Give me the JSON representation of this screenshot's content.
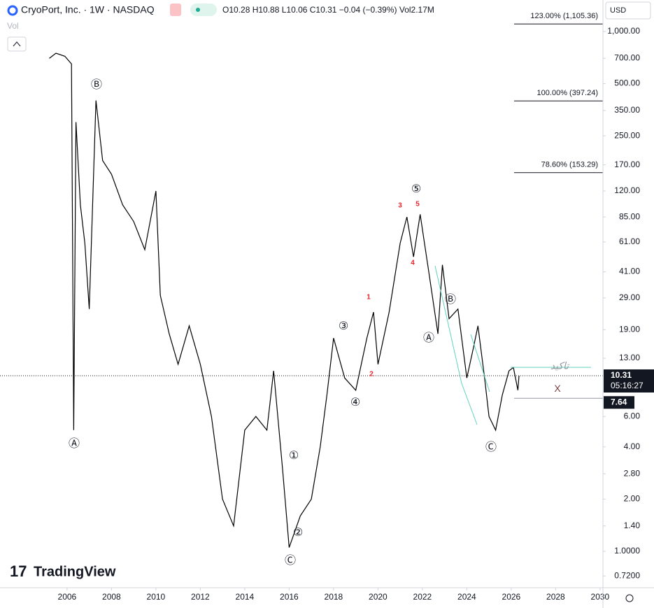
{
  "chart_data": {
    "type": "line",
    "title": "CryoPort, Inc. · 1W · NASDAQ",
    "ohlc": "O10.28 H10.88 L10.06 C10.31 −0.04 (−0.39%) Vol2.17M",
    "volume_label": "Vol",
    "currency": "USD",
    "brand": "TradingView",
    "log_scale": true,
    "color": "#000000",
    "x": [
      2005.2,
      2005.5,
      2005.9,
      2006.2,
      2006.3,
      2006.4,
      2006.6,
      2006.8,
      2007.0,
      2007.3,
      2007.6,
      2008.0,
      2008.5,
      2009.0,
      2009.5,
      2010.0,
      2010.2,
      2010.6,
      2011.0,
      2011.5,
      2012.0,
      2012.5,
      2013.0,
      2013.5,
      2014.0,
      2014.5,
      2015.0,
      2015.3,
      2015.7,
      2016.0,
      2016.5,
      2017.0,
      2017.4,
      2017.7,
      2018.0,
      2018.5,
      2019.0,
      2019.5,
      2019.8,
      2020.0,
      2020.5,
      2021.0,
      2021.3,
      2021.6,
      2021.9,
      2022.3,
      2022.7,
      2022.9,
      2023.2,
      2023.6,
      2024.0,
      2024.3,
      2024.5,
      2024.8,
      2025.0,
      2025.3,
      2025.6,
      2025.9,
      2026.1,
      2026.3,
      2026.35
    ],
    "values": [
      700,
      750,
      720,
      650,
      5,
      300,
      100,
      60,
      25,
      400,
      180,
      150,
      100,
      80,
      55,
      120,
      30,
      18,
      12,
      20,
      12,
      6,
      2,
      1.4,
      5,
      6,
      5,
      11,
      3,
      1.05,
      1.6,
      2,
      4,
      8,
      17,
      10,
      8.5,
      17,
      24,
      12,
      24,
      60,
      85,
      50,
      88,
      40,
      18,
      45,
      22,
      25,
      10,
      15,
      20,
      10,
      6,
      5,
      8,
      11,
      11.5,
      8.5,
      10.31
    ],
    "xlim": [
      2002.98,
      2030.13
    ],
    "xticks": [
      2006,
      2008,
      2010,
      2012,
      2014,
      2016,
      2018,
      2020,
      2022,
      2024,
      2026,
      2028,
      2030
    ],
    "ylim": [
      0.616,
      1520
    ],
    "yticks": [
      {
        "value": 1000,
        "label": "1,000.00"
      },
      {
        "value": 700,
        "label": "700.00"
      },
      {
        "value": 500,
        "label": "500.00"
      },
      {
        "value": 350,
        "label": "350.00"
      },
      {
        "value": 250,
        "label": "250.00"
      },
      {
        "value": 170,
        "label": "170.00"
      },
      {
        "value": 120,
        "label": "120.00"
      },
      {
        "value": 85,
        "label": "85.00"
      },
      {
        "value": 61,
        "label": "61.00"
      },
      {
        "value": 41,
        "label": "41.00"
      },
      {
        "value": 29,
        "label": "29.00"
      },
      {
        "value": 19,
        "label": "19.00"
      },
      {
        "value": 13,
        "label": "13.00"
      },
      {
        "value": 6,
        "label": "6.00"
      },
      {
        "value": 4,
        "label": "4.00"
      },
      {
        "value": 2.8,
        "label": "2.80"
      },
      {
        "value": 2,
        "label": "2.00"
      },
      {
        "value": 1.4,
        "label": "1.40"
      },
      {
        "value": 1,
        "label": "1.0000"
      },
      {
        "value": 0.72,
        "label": "0.7200"
      }
    ],
    "fib_levels": [
      {
        "value": 1105.36,
        "label": "123.00% (1,105.36)"
      },
      {
        "value": 397.24,
        "label": "100.00% (397.24)"
      },
      {
        "value": 153.29,
        "label": "78.60% (153.29)"
      }
    ],
    "last_price": 10.31,
    "countdown": "05:16:27",
    "level_price": 7.64,
    "level_note": "X",
    "confirm_note": "تاكید",
    "annotations": [
      "Ⓑ",
      "Ⓐ",
      "Ⓒ",
      "①",
      "②",
      "③",
      "④",
      "⑤",
      "Ⓐ",
      "Ⓑ",
      "Ⓒ",
      "1",
      "2",
      "3",
      "4",
      "5"
    ]
  }
}
